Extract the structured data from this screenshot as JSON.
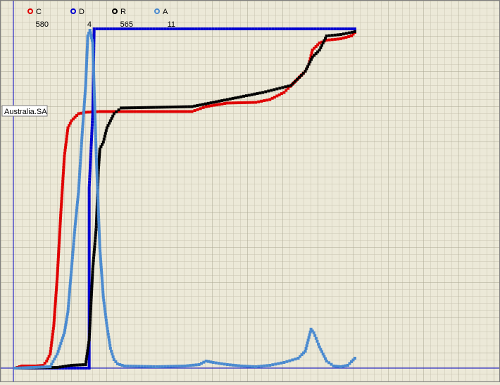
{
  "chart_data": {
    "type": "scatter",
    "region_label": "Australia.SA",
    "grid": true,
    "legend_position": "top-left",
    "series": [
      {
        "name": "C",
        "count": "580",
        "color": "#e00000",
        "values": [
          [
            0,
            0
          ],
          [
            10,
            3
          ],
          [
            20,
            3
          ],
          [
            30,
            3
          ],
          [
            40,
            4
          ],
          [
            45,
            10
          ],
          [
            50,
            20
          ],
          [
            55,
            60
          ],
          [
            60,
            130
          ],
          [
            65,
            220
          ],
          [
            70,
            300
          ],
          [
            75,
            340
          ],
          [
            80,
            350
          ],
          [
            85,
            355
          ],
          [
            90,
            360
          ],
          [
            100,
            362
          ],
          [
            120,
            363
          ],
          [
            150,
            363
          ],
          [
            200,
            363
          ],
          [
            250,
            363
          ],
          [
            270,
            370
          ],
          [
            300,
            375
          ],
          [
            340,
            376
          ],
          [
            360,
            380
          ],
          [
            380,
            390
          ],
          [
            400,
            410
          ],
          [
            410,
            420
          ],
          [
            415,
            430
          ],
          [
            420,
            450
          ],
          [
            430,
            460
          ],
          [
            440,
            464
          ],
          [
            460,
            466
          ],
          [
            475,
            470
          ],
          [
            480,
            475
          ]
        ]
      },
      {
        "name": "D",
        "count": "4",
        "color": "#0000d0",
        "values": [
          [
            0,
            0
          ],
          [
            40,
            0
          ],
          [
            60,
            0
          ],
          [
            105,
            0
          ],
          [
            105,
            255
          ],
          [
            110,
            360
          ],
          [
            112,
            480
          ],
          [
            200,
            480
          ],
          [
            300,
            480
          ],
          [
            480,
            480
          ]
        ]
      },
      {
        "name": "R",
        "count": "565",
        "color": "#000000",
        "values": [
          [
            0,
            0
          ],
          [
            60,
            1
          ],
          [
            80,
            4
          ],
          [
            100,
            5
          ],
          [
            105,
            40
          ],
          [
            110,
            140
          ],
          [
            115,
            200
          ],
          [
            118,
            280
          ],
          [
            120,
            310
          ],
          [
            125,
            320
          ],
          [
            130,
            340
          ],
          [
            140,
            360
          ],
          [
            150,
            368
          ],
          [
            200,
            369
          ],
          [
            250,
            370
          ],
          [
            300,
            380
          ],
          [
            350,
            390
          ],
          [
            390,
            400
          ],
          [
            410,
            420
          ],
          [
            420,
            440
          ],
          [
            430,
            450
          ],
          [
            440,
            470
          ],
          [
            460,
            472
          ],
          [
            480,
            476
          ]
        ]
      },
      {
        "name": "A",
        "count": "11",
        "color": "#4a8ad0",
        "values": [
          [
            0,
            0
          ],
          [
            50,
            2
          ],
          [
            60,
            20
          ],
          [
            70,
            50
          ],
          [
            75,
            80
          ],
          [
            80,
            140
          ],
          [
            85,
            200
          ],
          [
            90,
            250
          ],
          [
            95,
            330
          ],
          [
            100,
            400
          ],
          [
            103,
            470
          ],
          [
            106,
            478
          ],
          [
            110,
            460
          ],
          [
            115,
            300
          ],
          [
            120,
            170
          ],
          [
            125,
            100
          ],
          [
            130,
            60
          ],
          [
            135,
            28
          ],
          [
            140,
            12
          ],
          [
            145,
            6
          ],
          [
            155,
            3
          ],
          [
            200,
            2
          ],
          [
            240,
            3
          ],
          [
            260,
            5
          ],
          [
            270,
            10
          ],
          [
            280,
            8
          ],
          [
            300,
            5
          ],
          [
            320,
            3
          ],
          [
            340,
            2
          ],
          [
            360,
            4
          ],
          [
            380,
            8
          ],
          [
            400,
            14
          ],
          [
            410,
            24
          ],
          [
            418,
            55
          ],
          [
            422,
            50
          ],
          [
            430,
            30
          ],
          [
            440,
            10
          ],
          [
            450,
            3
          ],
          [
            460,
            2
          ],
          [
            470,
            4
          ],
          [
            480,
            14
          ]
        ]
      }
    ]
  }
}
